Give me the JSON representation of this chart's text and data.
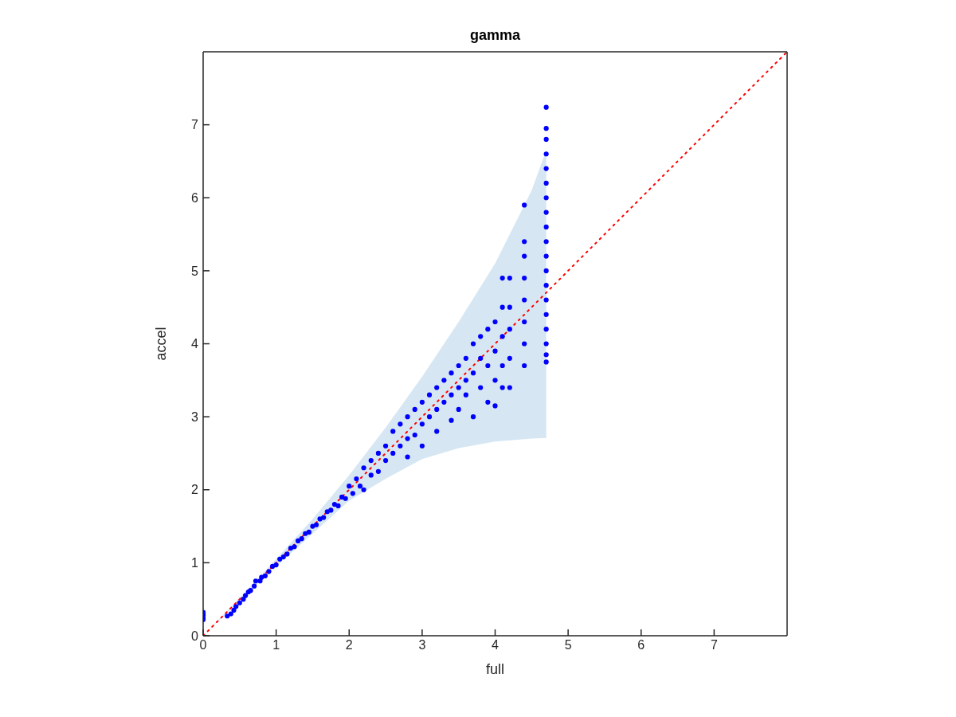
{
  "chart_data": {
    "type": "scatter",
    "title": "gamma",
    "xlabel": "full",
    "ylabel": "accel",
    "xlim": [
      0,
      8
    ],
    "ylim": [
      0,
      8
    ],
    "xticks": [
      0,
      1,
      2,
      3,
      4,
      5,
      6,
      7
    ],
    "yticks": [
      0,
      1,
      2,
      3,
      4,
      5,
      6,
      7
    ],
    "grid": false,
    "legend": false,
    "marker": "circle",
    "series": [
      {
        "type": "line",
        "color": "#ff0000",
        "line_style": "dotted",
        "marker": "none",
        "x": [
          0,
          0.5,
          1,
          1.5,
          2,
          2.5,
          3,
          3.5,
          4,
          4.5,
          4.7,
          8
        ],
        "values": [
          0,
          0.5,
          1,
          1.5,
          2,
          2.5,
          3,
          3.5,
          4,
          4.5,
          4.7,
          8
        ],
        "lower": [
          0,
          0.48,
          0.95,
          1.4,
          1.85,
          2.15,
          2.42,
          2.57,
          2.66,
          2.7,
          2.71,
          null
        ],
        "upper": [
          0,
          0.52,
          1.05,
          1.6,
          2.2,
          2.85,
          3.55,
          4.3,
          5.1,
          6.1,
          6.65,
          null
        ]
      },
      {
        "color": "#0000ff",
        "x": [
          0,
          0,
          0,
          0,
          0,
          0.33,
          0.38,
          0.42,
          0.45,
          0.5,
          0.55,
          0.58,
          0.62,
          0.65,
          0.7,
          0.72,
          0.78,
          0.8,
          0.85,
          0.9,
          0.95,
          1.0,
          1.05,
          1.1,
          1.15,
          1.2,
          1.25,
          1.3,
          1.35,
          1.4,
          1.45,
          1.5,
          1.55,
          1.6,
          1.65,
          1.7,
          1.75,
          1.8,
          1.85,
          1.9,
          1.95,
          2.0,
          2.05,
          2.1,
          2.15,
          2.2,
          2.2,
          2.3,
          2.3,
          2.4,
          2.4,
          2.5,
          2.5,
          2.6,
          2.6,
          2.7,
          2.7,
          2.8,
          2.8,
          2.8,
          2.9,
          2.9,
          3.0,
          3.0,
          3.0,
          3.1,
          3.1,
          3.2,
          3.2,
          3.2,
          3.3,
          3.3,
          3.4,
          3.4,
          3.4,
          3.5,
          3.5,
          3.5,
          3.6,
          3.6,
          3.6,
          3.7,
          3.7,
          3.7,
          3.8,
          3.8,
          3.8,
          3.9,
          3.9,
          3.9,
          4.0,
          4.0,
          4.0,
          4.0,
          4.1,
          4.1,
          4.1,
          4.1,
          4.1,
          4.2,
          4.2,
          4.2,
          4.2,
          4.2,
          4.4,
          4.4,
          4.4,
          4.4,
          4.4,
          4.4,
          4.4,
          4.4,
          4.7,
          4.7,
          4.7,
          4.7,
          4.7,
          4.7,
          4.7,
          4.7,
          4.7,
          4.7,
          4.7,
          4.7,
          4.7,
          4.7,
          4.7,
          4.7,
          4.7,
          4.7,
          4.7
        ],
        "values": [
          0.22,
          0.25,
          0.28,
          0.3,
          0.32,
          0.27,
          0.3,
          0.35,
          0.4,
          0.45,
          0.5,
          0.55,
          0.6,
          0.62,
          0.68,
          0.75,
          0.75,
          0.8,
          0.82,
          0.88,
          0.95,
          0.97,
          1.05,
          1.08,
          1.12,
          1.2,
          1.22,
          1.3,
          1.33,
          1.4,
          1.42,
          1.5,
          1.52,
          1.6,
          1.62,
          1.7,
          1.72,
          1.8,
          1.78,
          1.9,
          1.88,
          2.05,
          1.95,
          2.15,
          2.05,
          2.3,
          2.0,
          2.4,
          2.2,
          2.5,
          2.25,
          2.6,
          2.4,
          2.8,
          2.5,
          2.9,
          2.6,
          3.0,
          2.7,
          2.45,
          3.1,
          2.75,
          3.2,
          2.9,
          2.6,
          3.3,
          3.0,
          3.4,
          3.1,
          2.8,
          3.5,
          3.2,
          3.6,
          3.3,
          2.95,
          3.7,
          3.4,
          3.1,
          3.8,
          3.5,
          3.3,
          4.0,
          3.6,
          3.0,
          4.1,
          3.8,
          3.4,
          4.2,
          3.7,
          3.2,
          4.3,
          3.9,
          3.5,
          3.15,
          4.9,
          4.5,
          4.1,
          3.7,
          3.4,
          4.9,
          4.5,
          4.2,
          3.8,
          3.4,
          5.9,
          5.4,
          5.2,
          4.9,
          4.6,
          4.3,
          4.0,
          3.7,
          7.24,
          6.95,
          6.8,
          6.6,
          6.4,
          6.2,
          6.0,
          5.8,
          5.6,
          5.4,
          5.2,
          5.0,
          4.8,
          4.6,
          4.4,
          4.2,
          4.0,
          3.85,
          3.75
        ]
      }
    ]
  }
}
